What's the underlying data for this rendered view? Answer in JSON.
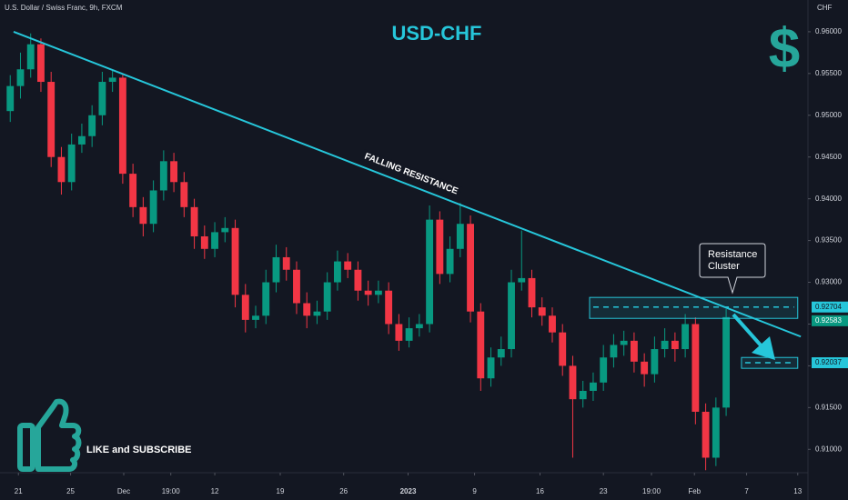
{
  "header": "U.S. Dollar / Swiss Franc, 9h, FXCM",
  "axis_unit": "CHF",
  "chart_data": {
    "type": "candlestick",
    "title": "USD-CHF",
    "icon_symbol": "$",
    "xlim": [
      -1,
      78
    ],
    "ylim": [
      0.9072,
      0.9638
    ],
    "grid": false,
    "up_color": "#089981",
    "down_color": "#f23645",
    "xticks": [
      {
        "value": 0.8,
        "label": "21"
      },
      {
        "value": 5.9,
        "label": "25"
      },
      {
        "value": 11.1,
        "label": "Dec"
      },
      {
        "value": 15.7,
        "label": "19:00"
      },
      {
        "value": 20.0,
        "label": "12"
      },
      {
        "value": 26.4,
        "label": "19"
      },
      {
        "value": 32.6,
        "label": "26"
      },
      {
        "value": 38.9,
        "label": "2023"
      },
      {
        "value": 45.4,
        "label": "9"
      },
      {
        "value": 51.8,
        "label": "16"
      },
      {
        "value": 58.0,
        "label": "23"
      },
      {
        "value": 62.7,
        "label": "19:00"
      },
      {
        "value": 66.9,
        "label": "Feb"
      },
      {
        "value": 72.0,
        "label": "7"
      },
      {
        "value": 77.0,
        "label": "13"
      }
    ],
    "yticks": [
      {
        "value": 0.96,
        "label": "0.96000"
      },
      {
        "value": 0.955,
        "label": "0.95500"
      },
      {
        "value": 0.95,
        "label": "0.95000"
      },
      {
        "value": 0.945,
        "label": "0.94500"
      },
      {
        "value": 0.94,
        "label": "0.94000"
      },
      {
        "value": 0.935,
        "label": "0.93500"
      },
      {
        "value": 0.93,
        "label": "0.93000"
      },
      {
        "value": 0.925,
        "label": "0.92500"
      },
      {
        "value": 0.92,
        "label": "0.92000"
      },
      {
        "value": 0.915,
        "label": "0.91500"
      },
      {
        "value": 0.91,
        "label": "0.91000"
      }
    ],
    "open": [
      0.9505,
      0.9535,
      0.9555,
      0.9585,
      0.954,
      0.945,
      0.942,
      0.9465,
      0.9475,
      0.95,
      0.954,
      0.9545,
      0.943,
      0.939,
      0.937,
      0.941,
      0.9445,
      0.942,
      0.939,
      0.9355,
      0.934,
      0.936,
      0.9365,
      0.9285,
      0.9255,
      0.926,
      0.93,
      0.933,
      0.9315,
      0.9275,
      0.926,
      0.9265,
      0.93,
      0.9325,
      0.9315,
      0.929,
      0.9285,
      0.929,
      0.925,
      0.923,
      0.9245,
      0.925,
      0.9375,
      0.931,
      0.934,
      0.937,
      0.9265,
      0.9185,
      0.921,
      0.922,
      0.93,
      0.9305,
      0.927,
      0.926,
      0.924,
      0.92,
      0.916,
      0.917,
      0.918,
      0.921,
      0.9225,
      0.923,
      0.9205,
      0.919,
      0.922,
      0.923,
      0.922,
      0.925,
      0.9145,
      0.909,
      0.915
    ],
    "high": [
      0.9548,
      0.9575,
      0.9598,
      0.9592,
      0.9552,
      0.9462,
      0.9478,
      0.949,
      0.9512,
      0.9552,
      0.9555,
      0.955,
      0.9442,
      0.9402,
      0.9422,
      0.9458,
      0.9455,
      0.9432,
      0.94,
      0.9368,
      0.9372,
      0.9378,
      0.9375,
      0.9298,
      0.9272,
      0.9315,
      0.9345,
      0.9342,
      0.9325,
      0.9288,
      0.9278,
      0.9312,
      0.9338,
      0.9335,
      0.9325,
      0.9302,
      0.9302,
      0.93,
      0.9262,
      0.9258,
      0.9262,
      0.9392,
      0.9385,
      0.9355,
      0.9395,
      0.938,
      0.9275,
      0.9222,
      0.9235,
      0.9315,
      0.9362,
      0.9315,
      0.9282,
      0.927,
      0.925,
      0.9212,
      0.9182,
      0.9192,
      0.9225,
      0.9238,
      0.9242,
      0.924,
      0.9215,
      0.9235,
      0.9245,
      0.924,
      0.9262,
      0.9258,
      0.9155,
      0.9162,
      0.9268
    ],
    "low": [
      0.9492,
      0.952,
      0.9545,
      0.9528,
      0.9438,
      0.9405,
      0.941,
      0.9455,
      0.9462,
      0.9488,
      0.9528,
      0.9418,
      0.9378,
      0.9355,
      0.936,
      0.9398,
      0.9408,
      0.9378,
      0.934,
      0.9328,
      0.933,
      0.9348,
      0.927,
      0.924,
      0.9245,
      0.925,
      0.9288,
      0.9302,
      0.9262,
      0.9245,
      0.925,
      0.9255,
      0.929,
      0.9305,
      0.9278,
      0.9272,
      0.9275,
      0.9238,
      0.9218,
      0.9222,
      0.9235,
      0.924,
      0.9298,
      0.93,
      0.933,
      0.9252,
      0.917,
      0.9175,
      0.92,
      0.921,
      0.929,
      0.9258,
      0.9248,
      0.9228,
      0.9188,
      0.909,
      0.915,
      0.9158,
      0.917,
      0.9198,
      0.9212,
      0.9192,
      0.9175,
      0.918,
      0.921,
      0.9205,
      0.921,
      0.913,
      0.9075,
      0.908,
      0.914
    ],
    "close": [
      0.9535,
      0.9555,
      0.9585,
      0.954,
      0.945,
      0.942,
      0.9465,
      0.9475,
      0.95,
      0.954,
      0.9545,
      0.943,
      0.939,
      0.937,
      0.941,
      0.9445,
      0.942,
      0.939,
      0.9355,
      0.934,
      0.936,
      0.9365,
      0.9285,
      0.9255,
      0.926,
      0.93,
      0.933,
      0.9315,
      0.9275,
      0.926,
      0.9265,
      0.93,
      0.9325,
      0.9315,
      0.929,
      0.9285,
      0.929,
      0.925,
      0.923,
      0.9245,
      0.925,
      0.9375,
      0.931,
      0.934,
      0.937,
      0.9265,
      0.9185,
      0.921,
      0.922,
      0.93,
      0.9305,
      0.927,
      0.926,
      0.924,
      0.92,
      0.916,
      0.917,
      0.918,
      0.921,
      0.9225,
      0.923,
      0.9205,
      0.919,
      0.922,
      0.923,
      0.922,
      0.925,
      0.9145,
      0.909,
      0.915,
      0.92583
    ],
    "trendline": {
      "label": "FALLING RESISTANCE",
      "color": "#26c6da",
      "x": [
        0.33,
        77.3
      ],
      "y": [
        0.96,
        0.9235
      ]
    },
    "zones": [
      {
        "xlim": [
          56.65,
          77.0
        ],
        "ylim": [
          0.92568,
          0.92819
        ],
        "level": 0.92704,
        "color": "#26c6da"
      },
      {
        "xlim": [
          71.5,
          77.0
        ],
        "ylim": [
          0.9197,
          0.921
        ],
        "level": 0.92037,
        "color": "#26c6da"
      }
    ],
    "callout": "Resistance\nCluster",
    "cta": "LIKE and SUBSCRIBE"
  }
}
